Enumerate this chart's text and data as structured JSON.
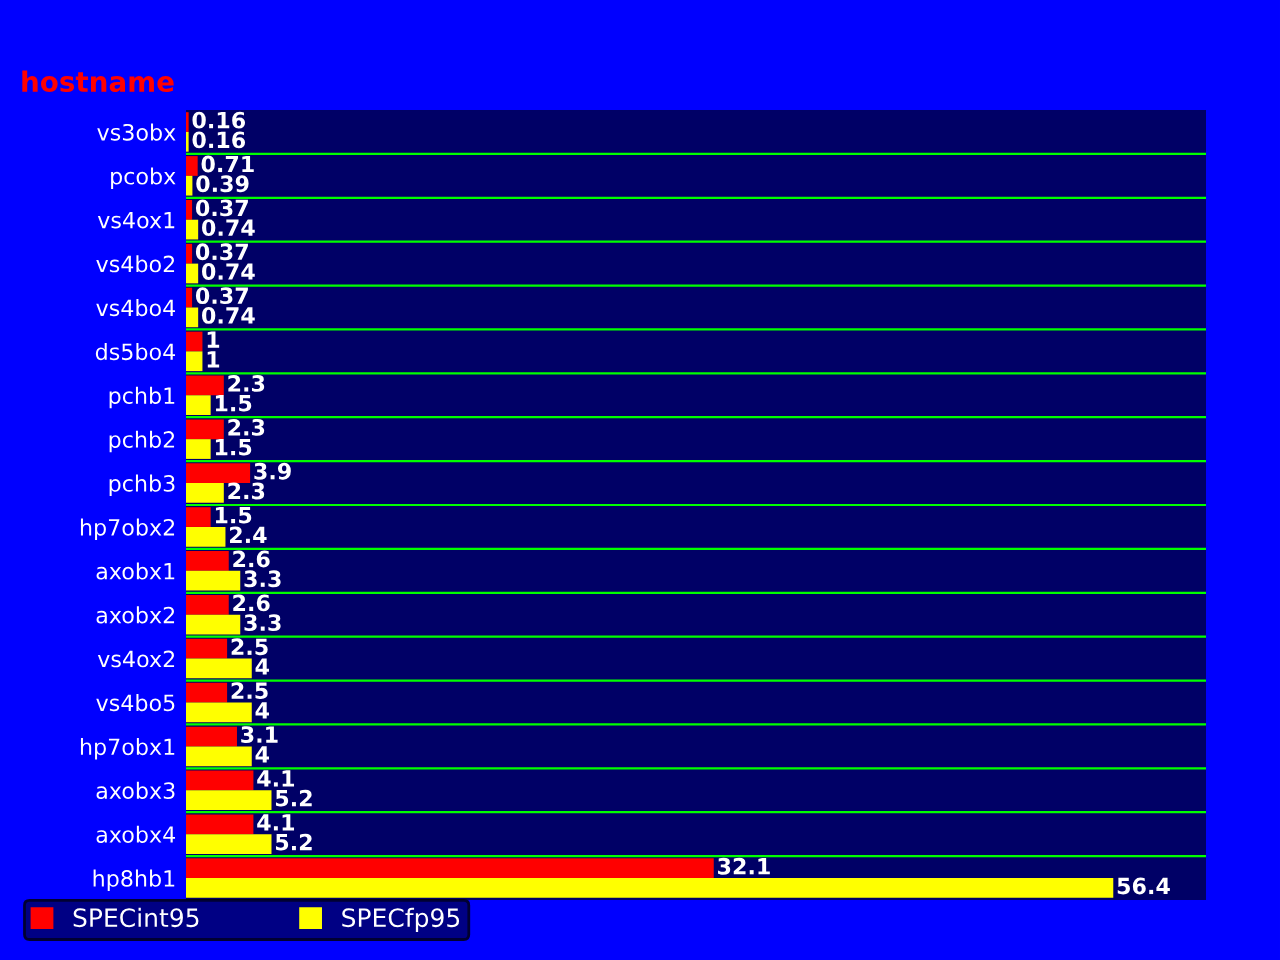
{
  "chart_data": {
    "type": "bar",
    "orientation": "horizontal",
    "ylabel": "hostname",
    "categories": [
      "vs3obx",
      "pcobx",
      "vs4ox1",
      "vs4bo2",
      "vs4bo4",
      "ds5bo4",
      "pchb1",
      "pchb2",
      "pchb3",
      "hp7obx2",
      "axobx1",
      "axobx2",
      "vs4ox2",
      "vs4bo5",
      "hp7obx1",
      "axobx3",
      "axobx4",
      "hp8hb1"
    ],
    "series": [
      {
        "name": "SPECint95",
        "color": "#ff0000",
        "values": [
          0.16,
          0.71,
          0.37,
          0.37,
          0.37,
          1,
          2.3,
          2.3,
          3.9,
          1.5,
          2.6,
          2.6,
          2.5,
          2.5,
          3.1,
          4.1,
          4.1,
          32.1
        ]
      },
      {
        "name": "SPECfp95",
        "color": "#ffff00",
        "values": [
          0.16,
          0.39,
          0.74,
          0.74,
          0.74,
          1,
          1.5,
          1.5,
          2.3,
          2.4,
          3.3,
          3.3,
          4,
          4,
          4,
          5.2,
          5.2,
          56.4
        ]
      }
    ],
    "data_labels": true,
    "grid": "y",
    "legend": "bottom left",
    "tick_labels": "y"
  }
}
